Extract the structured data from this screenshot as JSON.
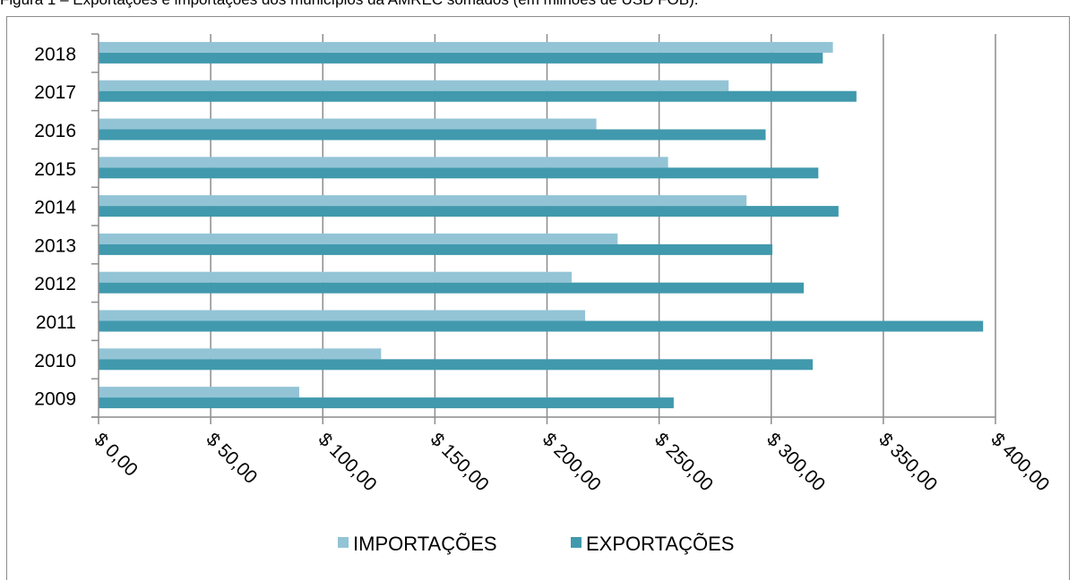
{
  "caption": "Figura 1 – Exportações e importações dos municípios da AMREC somados (em milhões de USD FOB).",
  "chart_data": {
    "type": "bar",
    "orientation": "horizontal",
    "categories": [
      "2009",
      "2010",
      "2011",
      "2012",
      "2013",
      "2014",
      "2015",
      "2016",
      "2017",
      "2018"
    ],
    "series": [
      {
        "name": "IMPORTAÇÕES",
        "color": "#93c4d6",
        "values": [
          89.5,
          126,
          217,
          211,
          231.5,
          289,
          254,
          222,
          281,
          327.5
        ]
      },
      {
        "name": "EXPORTAÇÕES",
        "color": "#4199ad",
        "values": [
          256.5,
          318.5,
          394.5,
          314.5,
          300.5,
          330,
          321,
          297.5,
          338,
          323
        ]
      }
    ],
    "xlim": [
      0,
      400
    ],
    "x_ticks": [
      "$ 0,00",
      "$ 50,00",
      "$ 100,00",
      "$ 150,00",
      "$ 200,00",
      "$ 250,00",
      "$ 300,00",
      "$ 350,00",
      "$ 400,00"
    ],
    "x_tick_values": [
      0,
      50,
      100,
      150,
      200,
      250,
      300,
      350,
      400
    ],
    "grid": "vertical",
    "legend_position": "bottom"
  }
}
